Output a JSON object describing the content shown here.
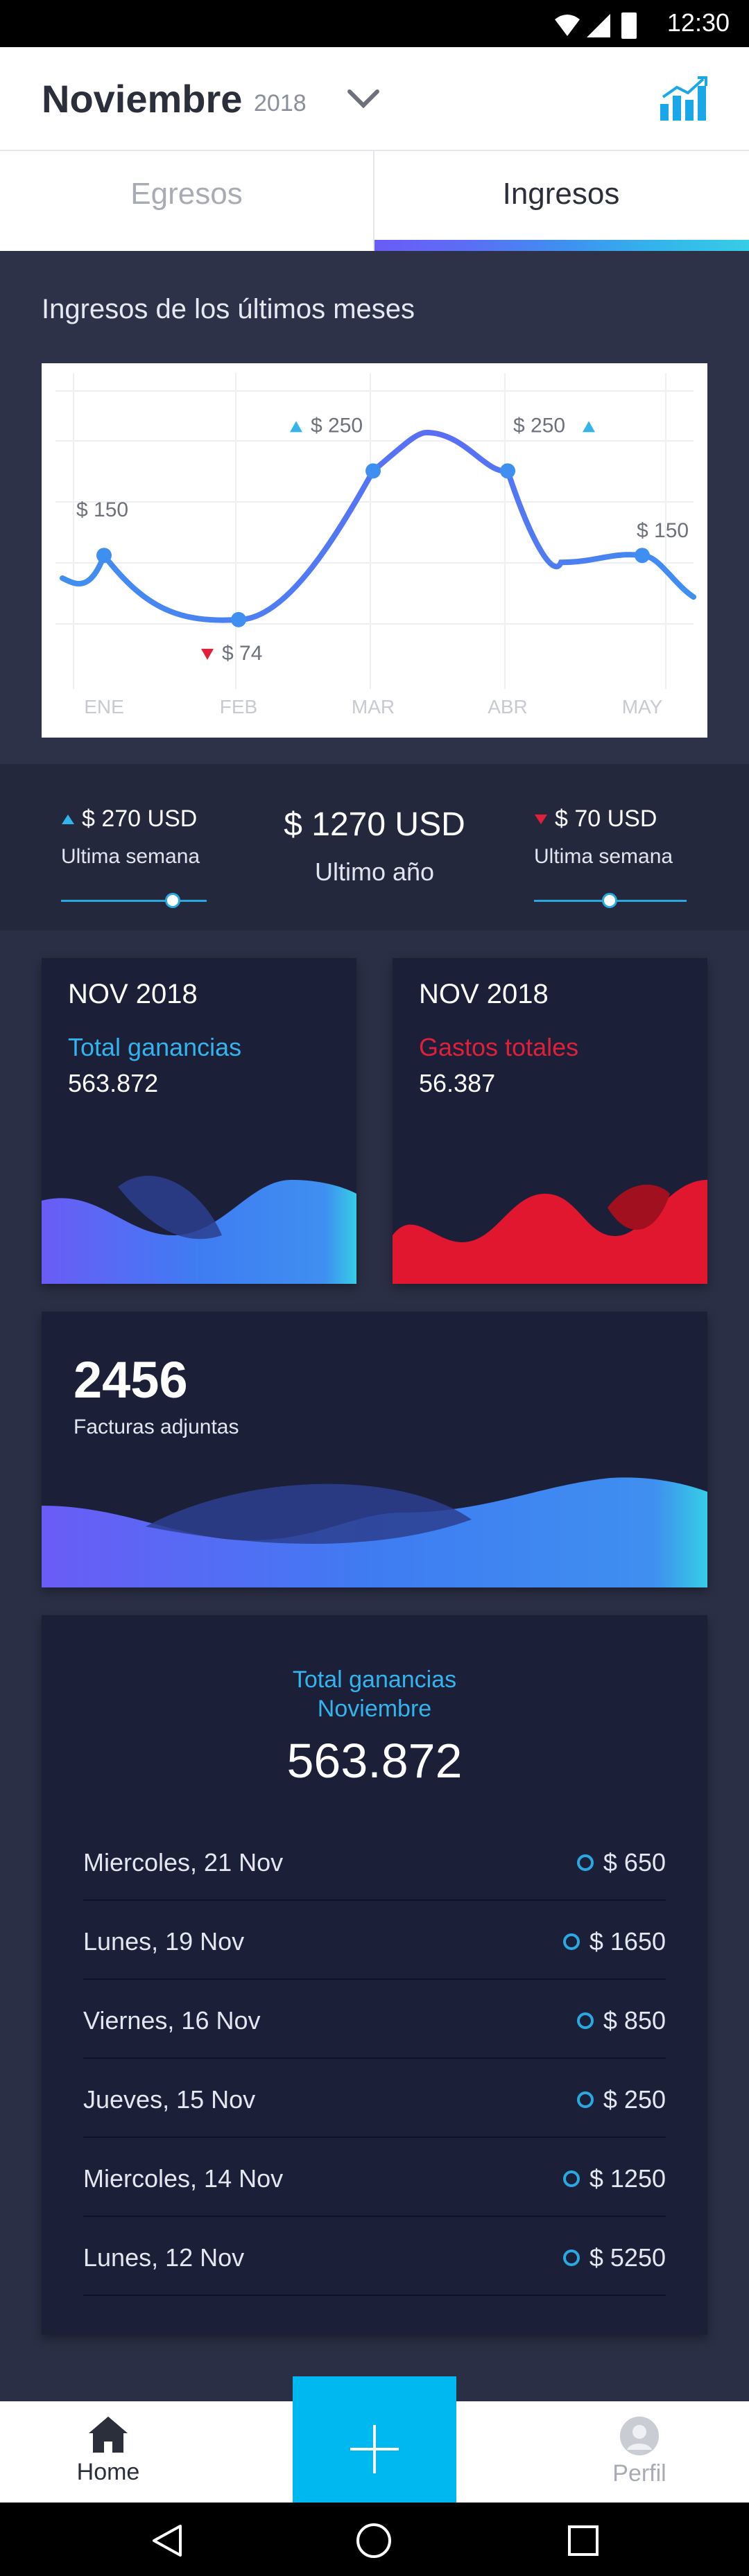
{
  "status_bar": {
    "time": "12:30"
  },
  "header": {
    "month": "Noviembre",
    "year": "2018"
  },
  "tabs": [
    {
      "label": "Egresos",
      "active": false
    },
    {
      "label": "Ingresos",
      "active": true
    }
  ],
  "income_chart": {
    "title": "Ingresos de los últimos meses",
    "chart_data": {
      "type": "line",
      "categories": [
        "ENE",
        "FEB",
        "MAR",
        "ABR",
        "MAY"
      ],
      "values": [
        150,
        74,
        250,
        250,
        150
      ],
      "labels": [
        "$ 150",
        "$ 74",
        "$ 250",
        "$ 250",
        "$ 150"
      ],
      "trend": [
        "none",
        "down",
        "up",
        "up",
        "none"
      ],
      "title": "",
      "xlabel": "",
      "ylabel": "",
      "grid": true
    }
  },
  "stats": {
    "left": {
      "value": "$ 270 USD",
      "label": "Ultima semana",
      "trend": "up",
      "slider_fraction": 0.8
    },
    "center": {
      "value": "$ 1270 USD",
      "label": "Ultimo año"
    },
    "right": {
      "value": "$ 70 USD",
      "label": "Ultima semana",
      "trend": "down",
      "slider_fraction": 0.5
    }
  },
  "cards": {
    "earnings": {
      "title": "NOV 2018",
      "label": "Total ganancias",
      "value": "563.872",
      "label_color": "#33b4ec"
    },
    "expenses": {
      "title": "NOV 2018",
      "label": "Gastos totales",
      "value": "56.387",
      "label_color": "#e0203a"
    },
    "invoices": {
      "count": "2456",
      "label": "Facturas adjuntas"
    }
  },
  "summary": {
    "title_line1": "Total ganancias",
    "title_line2": "Noviembre",
    "total": "563.872",
    "rows": [
      {
        "date": "Miercoles, 21 Nov",
        "amount": "$ 650"
      },
      {
        "date": "Lunes, 19 Nov",
        "amount": "$ 1650"
      },
      {
        "date": "Viernes, 16 Nov",
        "amount": "$ 850"
      },
      {
        "date": "Jueves, 15 Nov",
        "amount": "$ 250"
      },
      {
        "date": "Miercoles, 14 Nov",
        "amount": "$ 1250"
      },
      {
        "date": "Lunes, 12 Nov",
        "amount": "$ 5250"
      }
    ]
  },
  "bottom_nav": {
    "home": "Home",
    "profile": "Perfil"
  },
  "colors": {
    "accent": "#00b8f0",
    "line": "#3f8ff0",
    "up": "#33b4ec",
    "down": "#e0203a",
    "background": "#2b2f45"
  },
  "icons": [
    "wifi-icon",
    "signal-icon",
    "battery-icon",
    "chevron-down-icon",
    "bar-chart-icon",
    "home-icon",
    "plus-icon",
    "avatar-icon",
    "back-icon",
    "home-circle-icon",
    "recents-icon"
  ]
}
